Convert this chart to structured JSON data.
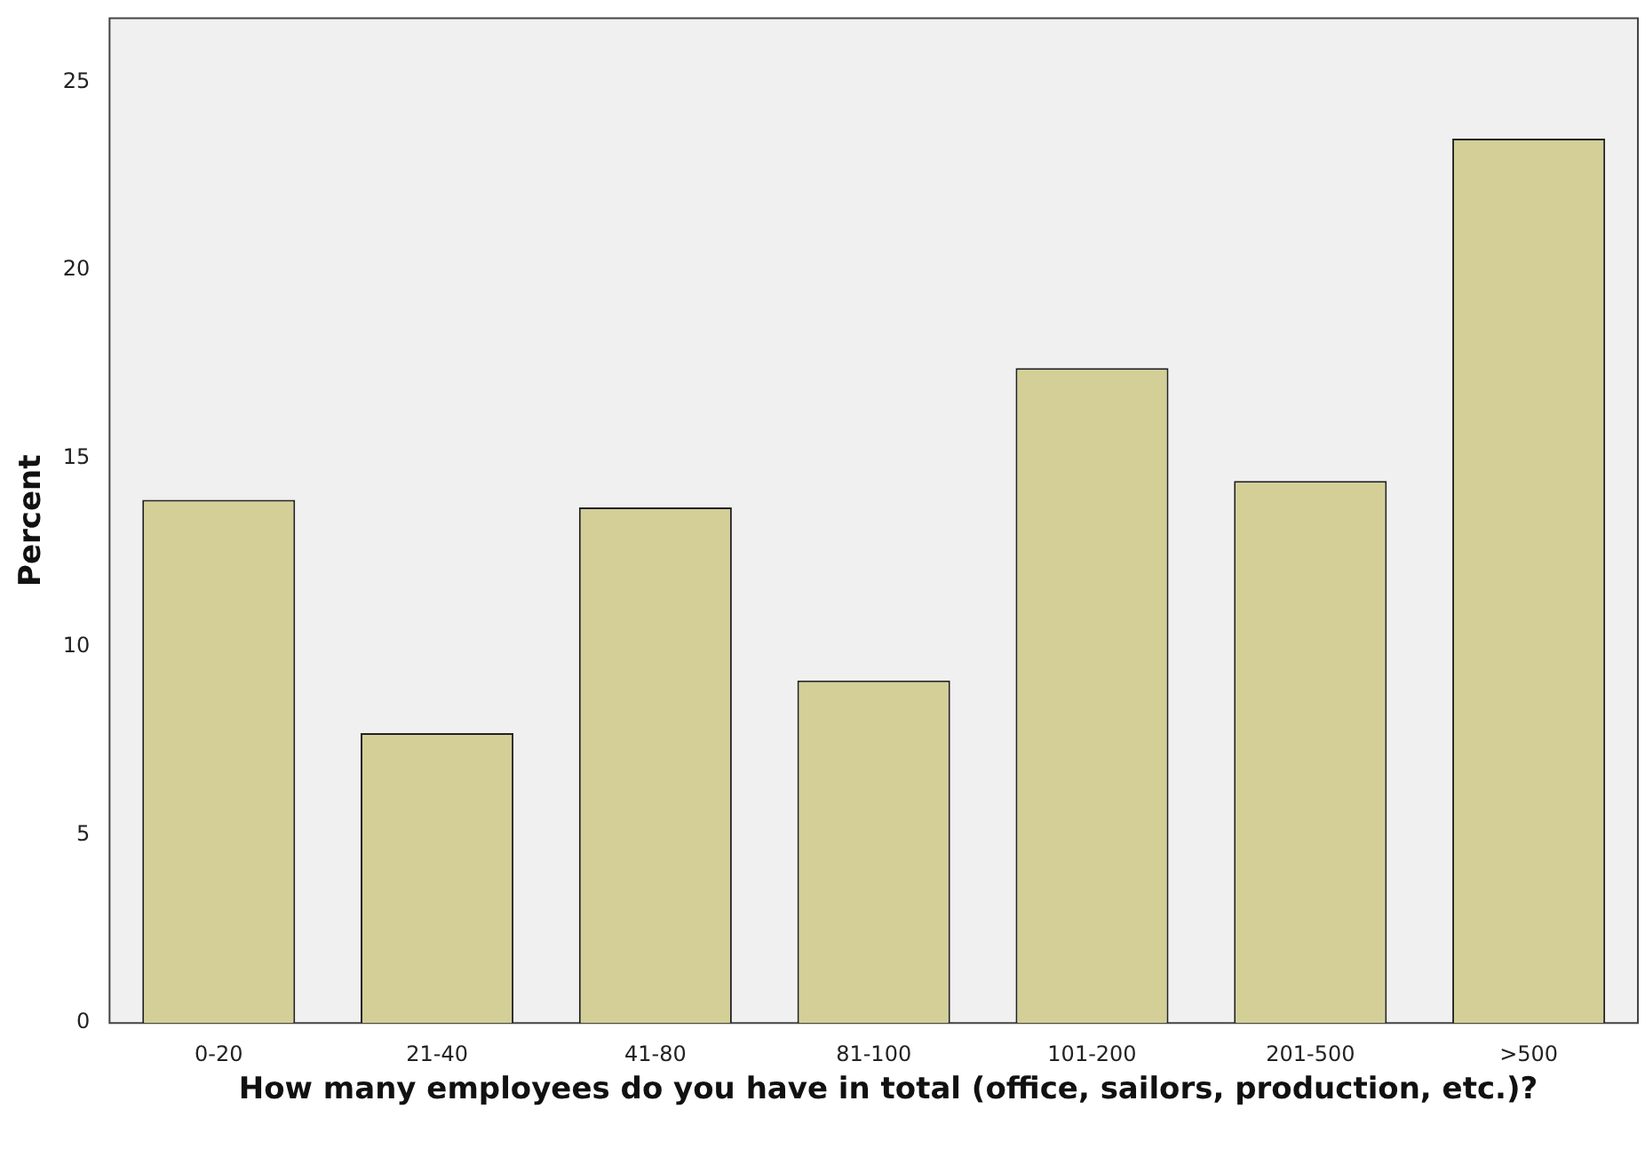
{
  "chart_data": {
    "type": "bar",
    "xlabel": "How many employees do you have in total (office, sailors, production, etc.)?",
    "ylabel": "Percent",
    "categories": [
      "0-20",
      "21-40",
      "41-80",
      "81-100",
      "101-200",
      "201-500",
      ">500"
    ],
    "values": [
      13.9,
      7.7,
      13.7,
      9.1,
      17.4,
      14.4,
      23.5
    ],
    "color": "#d3cf97",
    "ylim": [
      0,
      26.7
    ],
    "yticks": [
      0,
      5,
      10,
      15,
      20,
      25
    ],
    "grid": false,
    "legend": false
  }
}
